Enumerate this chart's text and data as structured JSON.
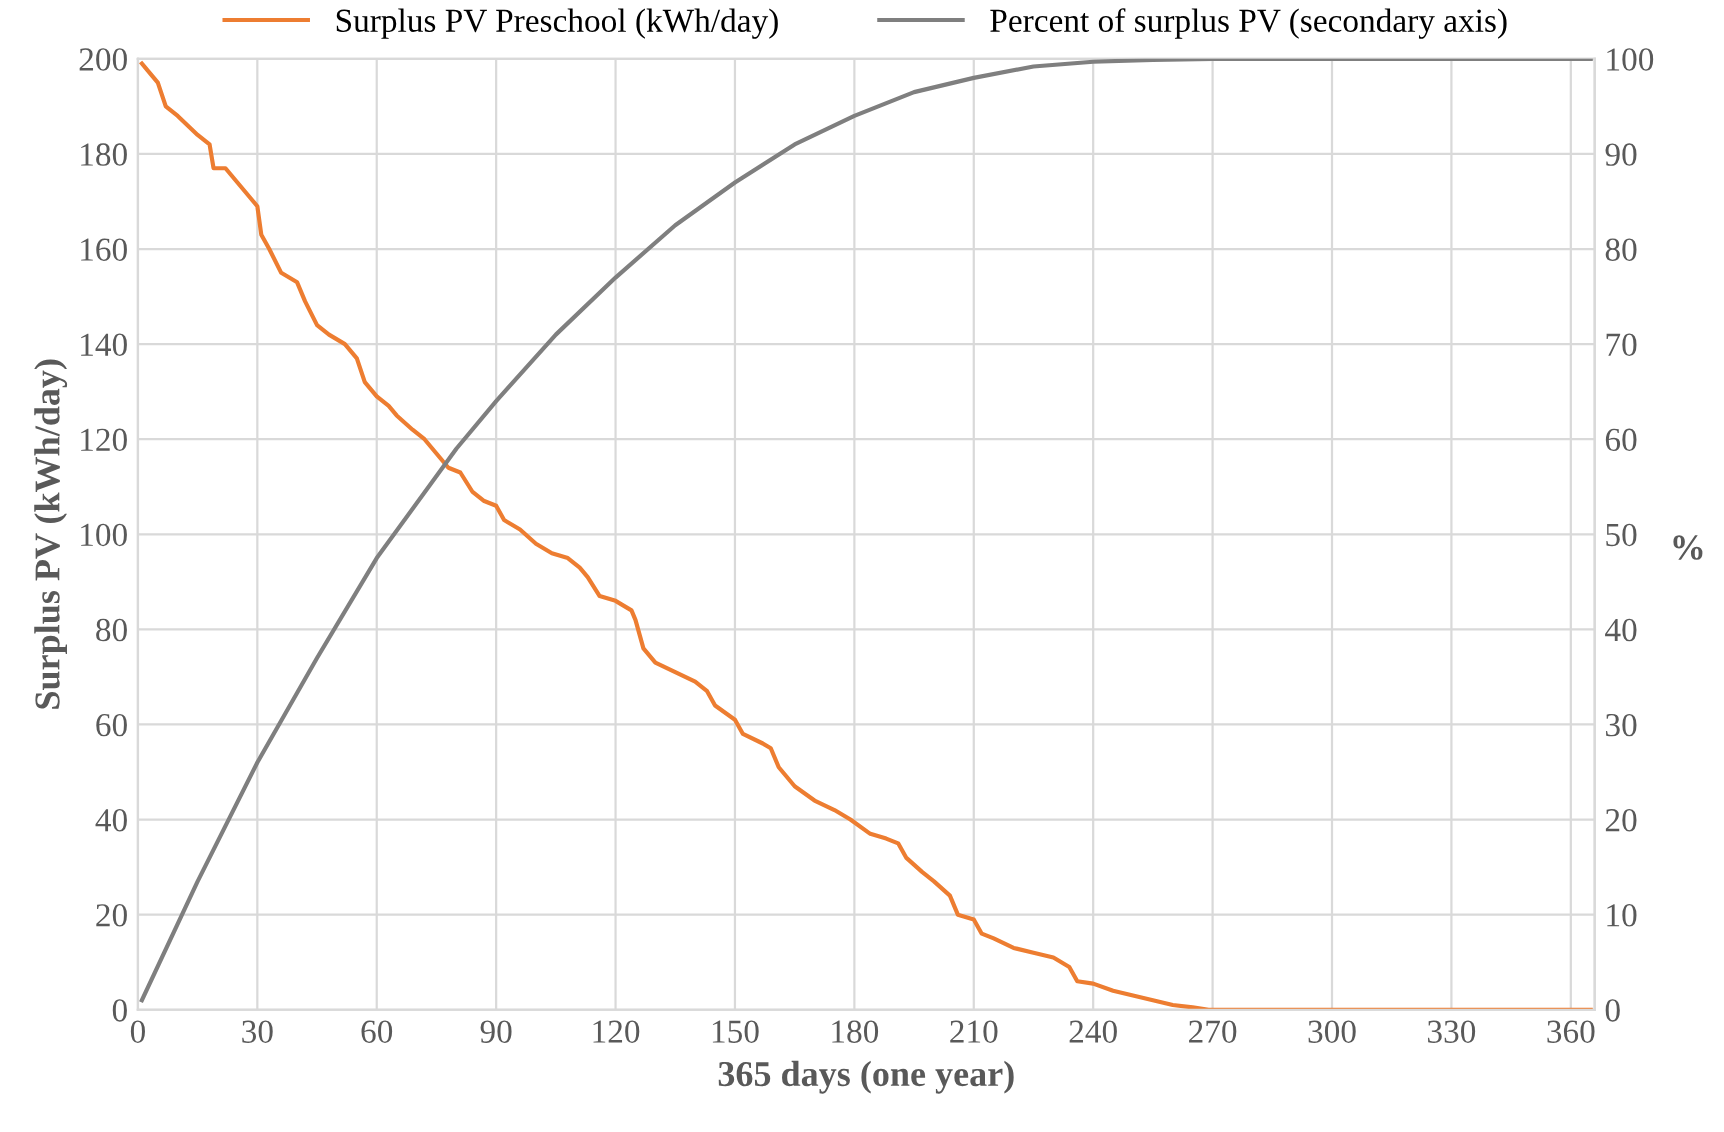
{
  "chart_data": {
    "type": "line",
    "xlabel": "365 days (one year)",
    "ylabel": "Surplus PV (kWh/day)",
    "y2label": "%",
    "xlim": [
      0,
      366
    ],
    "xticks": [
      0,
      30,
      60,
      90,
      120,
      150,
      180,
      210,
      240,
      270,
      300,
      330,
      360
    ],
    "ylim": [
      0,
      200
    ],
    "yticks": [
      0,
      20,
      40,
      60,
      80,
      100,
      120,
      140,
      160,
      180,
      200
    ],
    "y2lim": [
      0,
      100
    ],
    "y2ticks": [
      0,
      10,
      20,
      30,
      40,
      50,
      60,
      70,
      80,
      90,
      100
    ],
    "grid": true,
    "legend": "top",
    "marker": "none",
    "line_style": "solid",
    "series": [
      {
        "name": "Surplus PV Preschool (kWh/day)",
        "color": "#ed7d31",
        "x": [
          1,
          3,
          5,
          7,
          10,
          15,
          18,
          19,
          22,
          25,
          28,
          30,
          31,
          33,
          36,
          40,
          42,
          45,
          48,
          52,
          55,
          57,
          60,
          63,
          65,
          69,
          72,
          75,
          78,
          81,
          84,
          87,
          90,
          92,
          96,
          100,
          104,
          108,
          111,
          113,
          116,
          120,
          124,
          125,
          127,
          130,
          135,
          140,
          143,
          145,
          150,
          152,
          157,
          159,
          161,
          163,
          165,
          170,
          175,
          179,
          184,
          188,
          191,
          193,
          197,
          200,
          204,
          206,
          210,
          212,
          215,
          220,
          225,
          230,
          234,
          236,
          240,
          245,
          250,
          255,
          260,
          265,
          269,
          365
        ],
        "values": [
          199,
          197,
          195,
          190,
          188,
          184,
          182,
          177,
          177,
          174,
          171,
          169,
          163,
          160,
          155,
          153,
          149,
          144,
          142,
          140,
          137,
          132,
          129,
          127,
          125,
          122,
          120,
          117,
          114,
          113,
          109,
          107,
          106,
          103,
          101,
          98,
          96,
          95,
          93,
          91,
          87,
          86,
          84,
          82,
          76,
          73,
          71,
          69,
          67,
          64,
          61,
          58,
          56,
          55,
          51,
          49,
          47,
          44,
          42,
          40,
          37,
          36,
          35,
          32,
          29,
          27,
          24,
          20,
          19,
          16,
          15,
          13,
          12,
          11,
          9,
          6,
          5.5,
          4,
          3,
          2,
          1,
          0.5,
          0,
          0
        ]
      },
      {
        "name": "Percent of surplus PV (secondary axis)",
        "color": "#7f7f7f",
        "axis": "y2",
        "x": [
          1,
          15,
          30,
          45,
          60,
          80,
          90,
          105,
          120,
          135,
          150,
          165,
          180,
          195,
          210,
          225,
          240,
          255,
          270,
          365
        ],
        "values": [
          1,
          13.5,
          26,
          37,
          47.5,
          59,
          64,
          71,
          77,
          82.5,
          87,
          91,
          94,
          96.5,
          98,
          99.2,
          99.7,
          99.9,
          100,
          100
        ]
      }
    ]
  }
}
